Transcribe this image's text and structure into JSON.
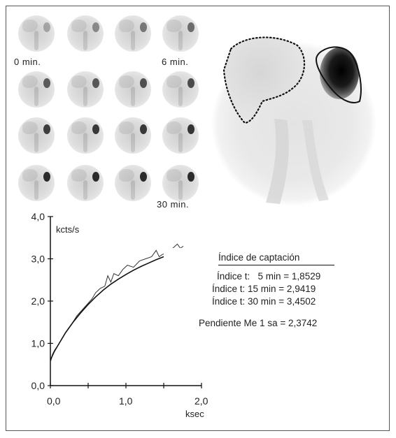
{
  "thumbnails": {
    "labels": {
      "start": "0 min.",
      "mid": "6 min.",
      "end": "30 min."
    },
    "spleen_intensity": [
      0.3,
      0.45,
      0.55,
      0.6,
      0.7,
      0.72,
      0.75,
      0.78,
      0.85,
      0.88,
      0.88,
      0.9,
      0.95,
      0.95,
      0.95,
      0.95
    ]
  },
  "uptake_index": {
    "title": "Índice de captación",
    "lines": [
      "Índice t:   5 min = 1,8529",
      "Índice t: 15 min = 2,9419",
      "Índice t: 30 min = 3,4502"
    ],
    "slope": "Pendiente Me 1 sa = 2,3742"
  },
  "chart_data": {
    "type": "line",
    "ylabel": "kcts/s",
    "xlabel": "ksec",
    "xlim": [
      0,
      2.0
    ],
    "ylim": [
      0,
      4.0
    ],
    "x_ticks": [
      "0,0",
      "1,0",
      "2,0"
    ],
    "y_ticks": [
      "0,0",
      "1,0",
      "2,0",
      "3,0",
      "4,0"
    ],
    "series": [
      {
        "x": [
          0.0,
          0.03,
          0.06,
          0.1,
          0.15,
          0.2,
          0.28,
          0.35,
          0.45,
          0.55,
          0.6,
          0.66,
          0.72,
          0.76,
          0.8,
          0.84,
          0.9,
          0.96,
          1.02,
          1.1,
          1.18,
          1.26,
          1.34,
          1.4,
          1.44,
          1.48,
          1.55,
          1.62,
          1.68,
          1.72,
          1.76
        ],
        "y": [
          0.55,
          0.75,
          0.85,
          0.95,
          1.1,
          1.25,
          1.45,
          1.65,
          1.85,
          2.05,
          2.2,
          2.3,
          2.35,
          2.6,
          2.45,
          2.65,
          2.6,
          2.75,
          2.85,
          2.8,
          2.95,
          3.0,
          3.05,
          3.2,
          3.05,
          3.1,
          3.15,
          3.25,
          3.35,
          3.25,
          3.3
        ]
      },
      {
        "x": [
          0.0,
          0.05,
          0.1,
          0.2,
          0.3,
          0.4,
          0.5,
          0.6,
          0.7,
          0.8,
          0.9,
          1.0,
          1.1,
          1.2,
          1.3,
          1.4,
          1.5,
          1.6,
          1.7,
          1.76
        ],
        "y": [
          0.6,
          0.8,
          0.95,
          1.25,
          1.5,
          1.72,
          1.92,
          2.1,
          2.26,
          2.4,
          2.52,
          2.63,
          2.73,
          2.82,
          2.9,
          2.98,
          3.05,
          3.12,
          3.18,
          3.22
        ]
      }
    ]
  }
}
